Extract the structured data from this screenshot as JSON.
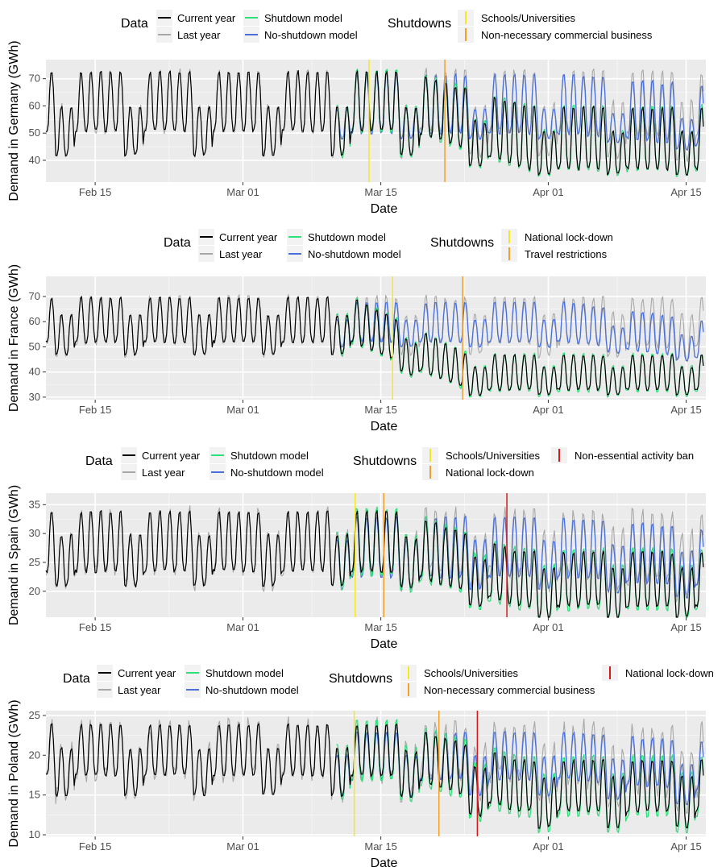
{
  "legend": {
    "data_title": "Data",
    "shutdowns_title": "Shutdowns",
    "current_year": "Current year",
    "last_year": "Last year",
    "shutdown_model": "Shutdown model",
    "no_shutdown_model": "No-shutdown model"
  },
  "colors": {
    "current_year": "#000000",
    "last_year": "#a8a8a8",
    "shutdown_model": "#2ee07a",
    "no_shutdown_model": "#4a6fd8",
    "panel_bg": "#ebebeb",
    "grid": "#ffffff"
  },
  "xaxis": {
    "title": "Date",
    "ticks": [
      {
        "label": "Feb 15",
        "day": 14
      },
      {
        "label": "Mar 01",
        "day": 29
      },
      {
        "label": "Mar 15",
        "day": 43
      },
      {
        "label": "Apr 01",
        "day": 60
      },
      {
        "label": "Apr 15",
        "day": 74
      }
    ],
    "range_days": [
      9,
      76
    ]
  },
  "chart_data": [
    {
      "type": "line",
      "country": "Germany",
      "ylabel": "Demand in Germany (GWh)",
      "ylim": [
        32,
        77
      ],
      "yticks": [
        40,
        50,
        60,
        70
      ],
      "series": [
        {
          "name": "Current year",
          "key": "current_year"
        },
        {
          "name": "Last year",
          "key": "last_year"
        },
        {
          "name": "Shutdown model",
          "key": "shutdown_model"
        },
        {
          "name": "No-shutdown model",
          "key": "no_shutdown_model"
        }
      ],
      "profile": {
        "weekday_peak": 73,
        "weekday_trough": 51,
        "weekend_peak": 60,
        "weekend_trough": 42,
        "start_decline_day": 46,
        "end_peak": 60,
        "end_trough": 37,
        "noshut_peak": 72,
        "noshut_trough": 50
      },
      "shutdowns": [
        {
          "label": "Schools/Universities",
          "day": 41.8,
          "color": "#f7e81a"
        },
        {
          "label": "Non-necessary commercial business",
          "day": 49.5,
          "color": "#f2a02a"
        }
      ]
    },
    {
      "type": "line",
      "country": "France",
      "ylabel": "Demand in France (GWh)",
      "ylim": [
        29,
        78
      ],
      "yticks": [
        30,
        40,
        50,
        60,
        70
      ],
      "series": [
        {
          "name": "Current year",
          "key": "current_year"
        },
        {
          "name": "Last year",
          "key": "last_year"
        },
        {
          "name": "Shutdown model",
          "key": "shutdown_model"
        },
        {
          "name": "No-shutdown model",
          "key": "no_shutdown_model"
        }
      ],
      "profile": {
        "weekday_peak": 70,
        "weekday_trough": 52,
        "weekend_peak": 63,
        "weekend_trough": 47,
        "start_decline_day": 40,
        "end_peak": 47,
        "end_trough": 33,
        "noshut_peak": 68,
        "noshut_trough": 52
      },
      "shutdowns": [
        {
          "label": "National lock-down",
          "day": 44.2,
          "color": "#f7e81a"
        },
        {
          "label": "Travel restrictions",
          "day": 51.3,
          "color": "#f2a02a"
        }
      ]
    },
    {
      "type": "line",
      "country": "Spain",
      "ylabel": "Demand in Spain (GWh)",
      "ylim": [
        15.5,
        37
      ],
      "yticks": [
        20,
        25,
        30,
        35
      ],
      "series": [
        {
          "name": "Current year",
          "key": "current_year"
        },
        {
          "name": "Last year",
          "key": "last_year"
        },
        {
          "name": "Shutdown model",
          "key": "shutdown_model"
        },
        {
          "name": "No-shutdown model",
          "key": "no_shutdown_model"
        }
      ],
      "profile": {
        "weekday_peak": 34,
        "weekday_trough": 23.5,
        "weekend_peak": 30,
        "weekend_trough": 21,
        "start_decline_day": 45,
        "end_peak": 27,
        "end_trough": 17.5,
        "noshut_peak": 33,
        "noshut_trough": 22.5
      },
      "shutdowns": [
        {
          "label": "Schools/Universities",
          "day": 40.4,
          "color": "#f7e81a"
        },
        {
          "label": "National lock-down",
          "day": 43.3,
          "color": "#f2a02a"
        },
        {
          "label": "Non-essential activity ban",
          "day": 55.8,
          "color": "#d7191c"
        }
      ]
    },
    {
      "type": "line",
      "country": "Poland",
      "ylabel": "Demand in Poland (GWh)",
      "ylim": [
        9.8,
        25.6
      ],
      "yticks": [
        10,
        15,
        20,
        25
      ],
      "series": [
        {
          "name": "Current year",
          "key": "current_year"
        },
        {
          "name": "Last year",
          "key": "last_year"
        },
        {
          "name": "Shutdown model",
          "key": "shutdown_model"
        },
        {
          "name": "No-shutdown model",
          "key": "no_shutdown_model"
        }
      ],
      "profile": {
        "weekday_peak": 24,
        "weekday_trough": 17.5,
        "weekend_peak": 21,
        "weekend_trough": 15,
        "start_decline_day": 45,
        "end_peak": 19.5,
        "end_trough": 13,
        "noshut_peak": 23,
        "noshut_trough": 17
      },
      "shutdowns": [
        {
          "label": "Schools/Universities",
          "day": 40.3,
          "color": "#f7e81a"
        },
        {
          "label": "Non-necessary commercial business",
          "day": 48.9,
          "color": "#f2a02a"
        },
        {
          "label": "National lock-down",
          "day": 52.8,
          "color": "#d7191c"
        }
      ]
    }
  ]
}
